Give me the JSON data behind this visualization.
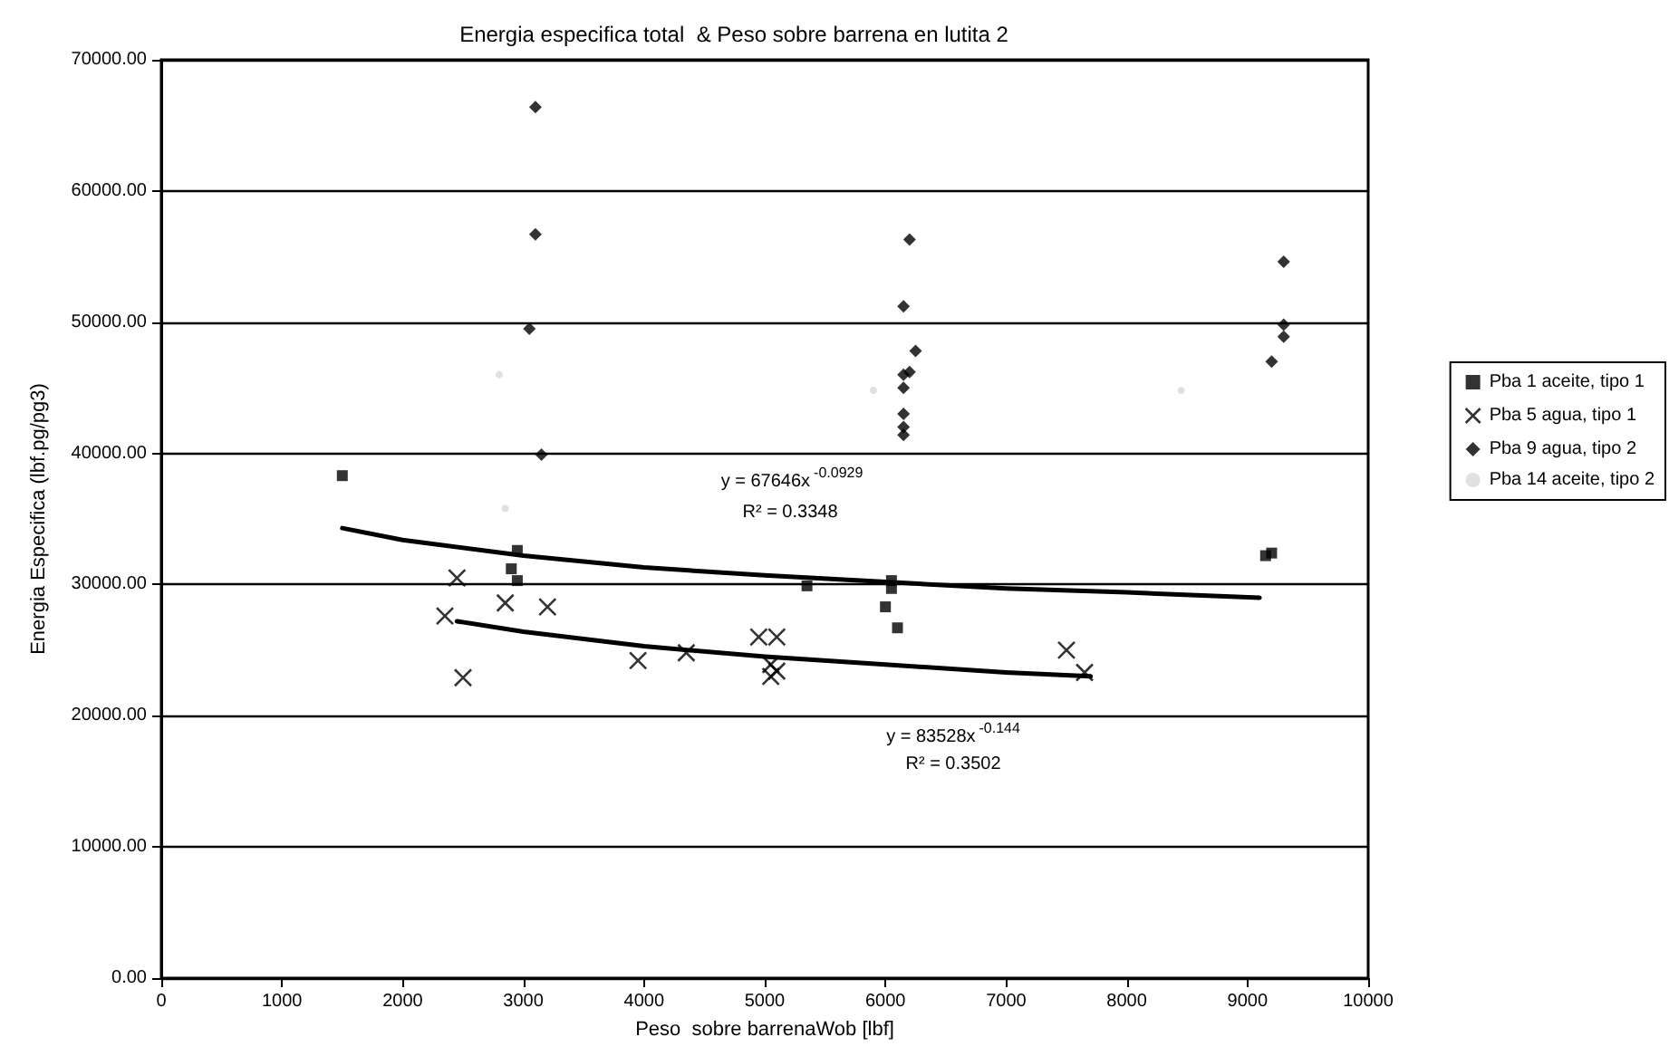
{
  "chart_data": {
    "type": "scatter",
    "title": "Energia especifica total  & Peso sobre barrena en lutita 2",
    "xlabel": "Peso  sobre barrenaWob [lbf]",
    "ylabel": "Energia Especifica (lbf.pg/pg3)",
    "xlim": [
      0,
      10000
    ],
    "xticks": [
      0,
      1000,
      2000,
      3000,
      4000,
      5000,
      6000,
      7000,
      8000,
      9000,
      10000
    ],
    "ylim": [
      0,
      70000
    ],
    "yticks": [
      {
        "value": 0,
        "label": "0.00"
      },
      {
        "value": 10000,
        "label": "10000.00"
      },
      {
        "value": 20000,
        "label": "20000.00"
      },
      {
        "value": 30000,
        "label": "30000.00"
      },
      {
        "value": 40000,
        "label": "40000.00"
      },
      {
        "value": 50000,
        "label": "50000.00"
      },
      {
        "value": 60000,
        "label": "60000.00"
      },
      {
        "value": 70000,
        "label": "70000.00"
      }
    ],
    "grid": "y",
    "legend": "right",
    "series": [
      {
        "name": "Pba 1 aceite, tipo 1",
        "color": "#000000",
        "marker": "square",
        "x": [
          1500,
          2950,
          2900,
          2950,
          5350,
          6050,
          6050,
          6000,
          6100,
          9150,
          9200
        ],
        "values": [
          38300,
          32600,
          31200,
          30300,
          29900,
          30300,
          29700,
          28300,
          26700,
          32200,
          32400
        ]
      },
      {
        "name": "Pba 5 agua, tipo 1",
        "color": "#000000",
        "marker": "cross",
        "x": [
          2450,
          2350,
          2500,
          2850,
          3200,
          3950,
          4350,
          4950,
          5100,
          5050,
          5100,
          5050,
          7500,
          7650
        ],
        "values": [
          30500,
          27600,
          22900,
          28600,
          28300,
          24200,
          24800,
          26000,
          26000,
          23900,
          23400,
          23000,
          25000,
          23300
        ]
      },
      {
        "name": "Pba 9 agua, tipo 2",
        "color": "#000000",
        "marker": "diamond",
        "x": [
          3100,
          3100,
          3050,
          3150,
          6200,
          6150,
          6250,
          6200,
          6150,
          6150,
          6150,
          6150,
          6150,
          9300,
          9300,
          9300,
          9200
        ],
        "values": [
          66400,
          56700,
          49500,
          39900,
          56300,
          51200,
          47800,
          46200,
          46000,
          45000,
          43000,
          42000,
          41400,
          54600,
          49800,
          48900,
          47000
        ]
      },
      {
        "name": "Pba 14 aceite, tipo 2",
        "color": "#d8d8d8",
        "marker": "circle",
        "x": [
          2800,
          2850,
          5900,
          8450
        ],
        "values": [
          46000,
          35800,
          44800,
          44800
        ]
      },
      {
        "type": "line",
        "color": "#000000",
        "marker": "none",
        "x": [
          1500,
          2000,
          3000,
          4000,
          5000,
          6000,
          7000,
          8000,
          9100
        ],
        "values": [
          34300,
          33400,
          32200,
          31300,
          30700,
          30200,
          29700,
          29400,
          29000
        ]
      },
      {
        "type": "line",
        "color": "#000000",
        "marker": "none",
        "x": [
          2450,
          3000,
          4000,
          5000,
          6000,
          7000,
          7700
        ],
        "values": [
          27200,
          26400,
          25300,
          24500,
          23900,
          23300,
          23000
        ]
      }
    ],
    "annotations": [
      "y = 67646x$^{-0.0929}$",
      "R² = 0.3348",
      "y = 83528x$^{-0.144}$",
      "R² = 0.3502"
    ]
  }
}
